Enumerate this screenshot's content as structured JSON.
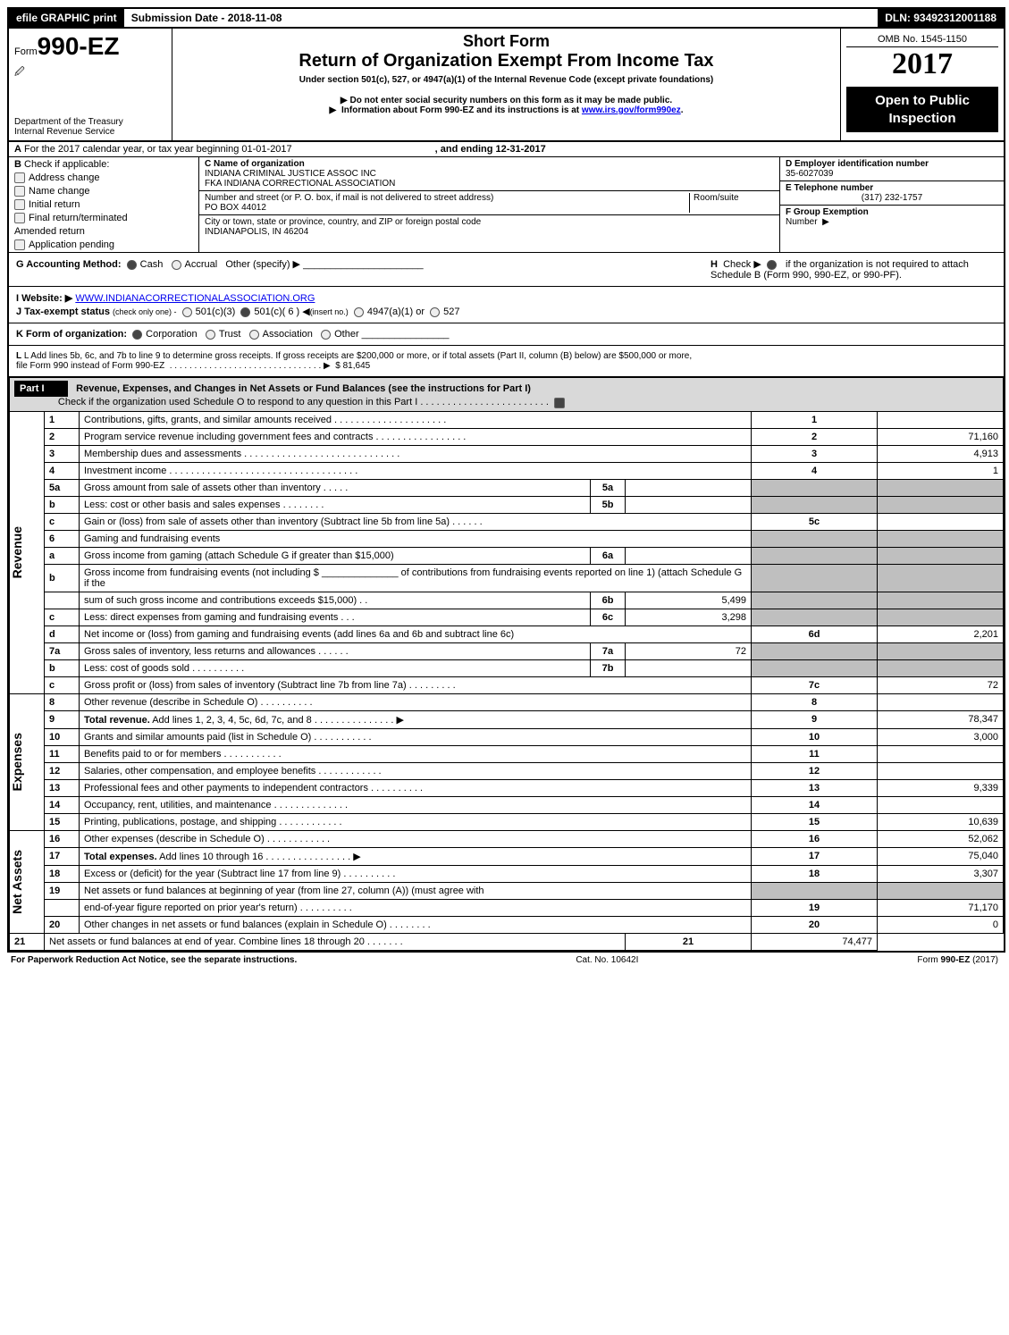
{
  "topbar": {
    "efile": "efile GRAPHIC print",
    "submission": "Submission Date - 2018-11-08",
    "dln": "DLN: 93492312001188"
  },
  "header": {
    "form_prefix": "Form",
    "form_number": "990-EZ",
    "treasury": "Department of the Treasury",
    "irs": "Internal Revenue Service",
    "short_form": "Short Form",
    "title": "Return of Organization Exempt From Income Tax",
    "under_section": "Under section 501(c), 527, or 4947(a)(1) of the Internal Revenue Code (except private foundations)",
    "ssn_warning": "Do not enter social security numbers on this form as it may be made public.",
    "info_prefix": "Information about Form 990-EZ and its instructions is at ",
    "info_link": "www.irs.gov/form990ez",
    "info_suffix": ".",
    "omb": "OMB No. 1545-1150",
    "year": "2017",
    "open_public_1": "Open to Public",
    "open_public_2": "Inspection"
  },
  "section_a": {
    "a_prefix": "A",
    "a_text": "For the 2017 calendar year, or tax year beginning 01-01-2017",
    "a_ending": ", and ending 12-31-2017",
    "b_prefix": "B",
    "b_text": "Check if applicable:",
    "checks": [
      "Address change",
      "Name change",
      "Initial return",
      "Final return/terminated",
      "Amended return",
      "Application pending"
    ],
    "c_label": "C Name of organization",
    "c_name1": "INDIANA CRIMINAL JUSTICE ASSOC INC",
    "c_name2": "FKA INDIANA CORRECTIONAL ASSOCIATION",
    "street_label": "Number and street (or P. O. box, if mail is not delivered to street address)",
    "room_label": "Room/suite",
    "street_val": "PO BOX 44012",
    "city_label": "City or town, state or province, country, and ZIP or foreign postal code",
    "city_val": "INDIANAPOLIS, IN  46204",
    "d_label": "D Employer identification number",
    "d_val": "35-6027039",
    "e_label": "E Telephone number",
    "e_val": "(317) 232-1757",
    "f_label": "F Group Exemption",
    "f_number": "Number"
  },
  "lines_ghij": {
    "g_label": "G Accounting Method:",
    "g_cash": "Cash",
    "g_accrual": "Accrual",
    "g_other": "Other (specify) ▶",
    "h_label": "H",
    "h_text": "Check ▶",
    "h_clause": "if the organization is not required to attach Schedule B (Form 990, 990-EZ, or 990-PF).",
    "i_label": "I Website: ▶",
    "i_val": "WWW.INDIANACORRECTIONALASSOCIATION.ORG",
    "j_label": "J Tax-exempt status",
    "j_text": "(check only one) -",
    "j_501c3": "501(c)(3)",
    "j_501c": "501(c)( 6 )",
    "j_insert": "(insert no.)",
    "j_4947": "4947(a)(1) or",
    "j_527": "527",
    "k_label": "K Form of organization:",
    "k_corp": "Corporation",
    "k_trust": "Trust",
    "k_assoc": "Association",
    "k_other": "Other",
    "l_text1": "L Add lines 5b, 6c, and 7b to line 9 to determine gross receipts. If gross receipts are $200,000 or more, or if total assets (Part II, column (B) below) are $500,000 or more,",
    "l_text2": "file Form 990 instead of Form 990-EZ",
    "l_dots": ". . . . . . . . . . . . . . . . . . . . . . . . . . . . . . . ▶",
    "l_amount": "$ 81,645"
  },
  "part1": {
    "part_label": "Part I",
    "heading": "Revenue, Expenses, and Changes in Net Assets or Fund Balances (see the instructions for Part I)",
    "check_text": "Check if the organization used Schedule O to respond to any question in this Part I . . . . . . . . . . . . . . . . . . . . . . . ."
  },
  "side_labels": {
    "revenue": "Revenue",
    "expenses": "Expenses",
    "net_assets": "Net Assets"
  },
  "rows": [
    {
      "n": "1",
      "desc": "Contributions, gifts, grants, and similar amounts received  . . . . . . . . . . . . . . . . . . . . .",
      "has_mid": false,
      "rn": "1",
      "rv": ""
    },
    {
      "n": "2",
      "desc": "Program service revenue including government fees and contracts . . . . . . . . . . . . . . . . .",
      "has_mid": false,
      "rn": "2",
      "rv": "71,160"
    },
    {
      "n": "3",
      "desc": "Membership dues and assessments  . . . . . . . . . . . . . . . . . . . . . . . . . . . . .",
      "has_mid": false,
      "rn": "3",
      "rv": "4,913"
    },
    {
      "n": "4",
      "desc": "Investment income  . . . . . . . . . . . . . . . . . . . . . . . . . . . . . . . . . . .",
      "has_mid": false,
      "rn": "4",
      "rv": "1"
    },
    {
      "n": "5a",
      "desc": "Gross amount from sale of assets other than inventory  . . . . .",
      "has_mid": true,
      "mn": "5a",
      "mv": "",
      "shaded_right": true
    },
    {
      "n": "b",
      "desc": "Less: cost or other basis and sales expenses  . . . . . . . .",
      "has_mid": true,
      "mn": "5b",
      "mv": "",
      "shaded_right": true
    },
    {
      "n": "c",
      "desc": "Gain or (loss) from sale of assets other than inventory (Subtract line 5b from line 5a)              .    .    .    .    .    .",
      "has_mid": false,
      "rn": "5c",
      "rv": ""
    },
    {
      "n": "6",
      "desc": "Gaming and fundraising events",
      "has_mid": false,
      "shaded_right": true,
      "no_right_num": true
    },
    {
      "n": "a",
      "desc": "Gross income from gaming (attach Schedule G if greater than $15,000)",
      "has_mid": true,
      "mn": "6a",
      "mv": "",
      "shaded_right": true
    },
    {
      "n": "b",
      "desc": "Gross income from fundraising events (not including $ ______________ of contributions from fundraising events reported on line 1) (attach Schedule G if the",
      "has_mid": false,
      "shaded_right": true,
      "no_right_num": true,
      "two_line": true
    },
    {
      "n": "",
      "desc": "sum of such gross income and contributions exceeds $15,000)       .    .",
      "has_mid": true,
      "mn": "6b",
      "mv": "5,499",
      "shaded_right": true
    },
    {
      "n": "c",
      "desc": "Less: direct expenses from gaming and fundraising events        .    .    .",
      "has_mid": true,
      "mn": "6c",
      "mv": "3,298",
      "shaded_right": true
    },
    {
      "n": "d",
      "desc": "Net income or (loss) from gaming and fundraising events (add lines 6a and 6b and subtract line 6c)",
      "has_mid": false,
      "rn": "6d",
      "rv": "2,201"
    },
    {
      "n": "7a",
      "desc": "Gross sales of inventory, less returns and allowances          .    .    .    .    .    .",
      "has_mid": true,
      "mn": "7a",
      "mv": "72",
      "shaded_right": true
    },
    {
      "n": "b",
      "desc": "Less: cost of goods sold                .    .    .    .    .    .    .    .    .    .",
      "has_mid": true,
      "mn": "7b",
      "mv": "",
      "shaded_right": true
    },
    {
      "n": "c",
      "desc": "Gross profit or (loss) from sales of inventory (Subtract line 7b from line 7a)        .    .    .    .    .    .    .    .    .",
      "has_mid": false,
      "rn": "7c",
      "rv": "72"
    },
    {
      "n": "8",
      "desc": "Other revenue (describe in Schedule O)                .    .    .    .    .    .    .    .    .    .",
      "has_mid": false,
      "rn": "8",
      "rv": ""
    },
    {
      "n": "9",
      "desc": "Total revenue. Add lines 1, 2, 3, 4, 5c, 6d, 7c, and 8        .    .    .    .    .    .    .    .    .    .    .    .    .    .    . ▶",
      "has_mid": false,
      "rn": "9",
      "rv": "78,347",
      "bold": true
    },
    {
      "n": "10",
      "desc": "Grants and similar amounts paid (list in Schedule O)                .    .    .    .    .    .    .    .    .    .    .",
      "has_mid": false,
      "rn": "10",
      "rv": "3,000"
    },
    {
      "n": "11",
      "desc": "Benefits paid to or for members                .    .    .    .    .    .    .    .    .    .    .",
      "has_mid": false,
      "rn": "11",
      "rv": ""
    },
    {
      "n": "12",
      "desc": "Salaries, other compensation, and employee benefits        .    .    .    .    .    .    .    .    .    .    .    .",
      "has_mid": false,
      "rn": "12",
      "rv": ""
    },
    {
      "n": "13",
      "desc": "Professional fees and other payments to independent contractors        .    .    .    .    .    .    .    .    .    .",
      "has_mid": false,
      "rn": "13",
      "rv": "9,339"
    },
    {
      "n": "14",
      "desc": "Occupancy, rent, utilities, and maintenance        .    .    .    .    .    .    .    .    .    .    .    .    .    .",
      "has_mid": false,
      "rn": "14",
      "rv": ""
    },
    {
      "n": "15",
      "desc": "Printing, publications, postage, and shipping                .    .    .    .    .    .    .    .    .    .    .    .",
      "has_mid": false,
      "rn": "15",
      "rv": "10,639"
    },
    {
      "n": "16",
      "desc": "Other expenses (describe in Schedule O)                .    .    .    .    .    .    .    .    .    .    .    .",
      "has_mid": false,
      "rn": "16",
      "rv": "52,062"
    },
    {
      "n": "17",
      "desc": "Total expenses. Add lines 10 through 16                .    .    .    .    .    .    .    .    .    .    .    .    .    .    .    . ▶",
      "has_mid": false,
      "rn": "17",
      "rv": "75,040",
      "bold": true
    },
    {
      "n": "18",
      "desc": "Excess or (deficit) for the year (Subtract line 17 from line 9)                .    .    .    .    .    .    .    .    .    .",
      "has_mid": false,
      "rn": "18",
      "rv": "3,307"
    },
    {
      "n": "19",
      "desc": "Net assets or fund balances at beginning of year (from line 27, column (A)) (must agree with",
      "has_mid": false,
      "shaded_right": true,
      "no_right_num": true
    },
    {
      "n": "",
      "desc": "end-of-year figure reported on prior year's return)                .    .    .    .    .    .    .    .    .    .",
      "has_mid": false,
      "rn": "19",
      "rv": "71,170"
    },
    {
      "n": "20",
      "desc": "Other changes in net assets or fund balances (explain in Schedule O)            .    .    .    .    .    .    .    .",
      "has_mid": false,
      "rn": "20",
      "rv": "0"
    },
    {
      "n": "21",
      "desc": "Net assets or fund balances at end of year. Combine lines 18 through 20            .    .    .    .    .    .    .",
      "has_mid": false,
      "rn": "21",
      "rv": "74,477"
    }
  ],
  "footer": {
    "left": "For Paperwork Reduction Act Notice, see the separate instructions.",
    "center": "Cat. No. 10642I",
    "right_prefix": "Form ",
    "right_form": "990-EZ",
    "right_year": " (2017)"
  },
  "colors": {
    "black": "#000000",
    "white": "#ffffff",
    "gray_shade": "#bfbfbf",
    "part_gray": "#d9d9d9",
    "link": "#0000ee",
    "checkbox_bg": "#eeeeee"
  }
}
